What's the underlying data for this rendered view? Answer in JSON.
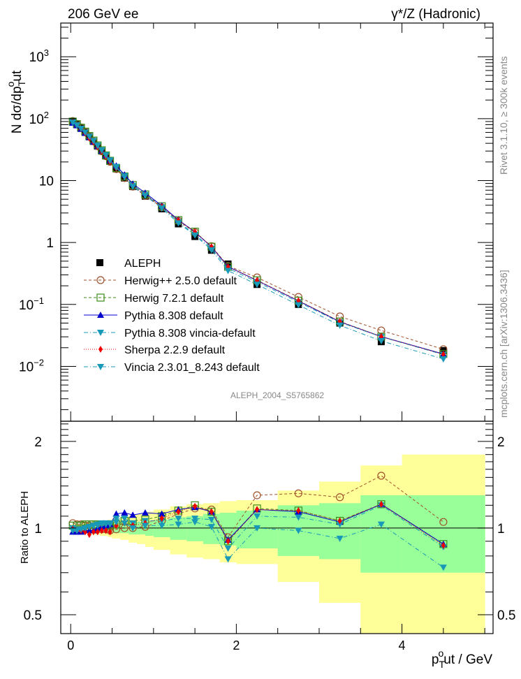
{
  "chart_data": {
    "type": "line",
    "header_left": "206 GeV ee",
    "header_right": "γ*/Z (Hadronic)",
    "side_text_top": "Rivet 3.1.10, ≥ 300k events",
    "side_text_bottom": "mcplots.cern.ch [arXiv:1306.3436]",
    "analysis_label": "ALEPH_2004_S5765862",
    "main": {
      "ylabel": "N dσ/dp",
      "ylabel_sub": "T",
      "ylabel_sup": "o",
      "ylabel_tail": "ut",
      "yscale": "log",
      "ylim": [
        0.0013,
        3500
      ],
      "yticks": [
        {
          "v": 1000,
          "base": "10",
          "exp": "3"
        },
        {
          "v": 100,
          "base": "10",
          "exp": "2"
        },
        {
          "v": 10,
          "base": "10",
          "exp": ""
        },
        {
          "v": 1,
          "base": "1",
          "exp": ""
        },
        {
          "v": 0.1,
          "base": "10",
          "exp": "−1"
        },
        {
          "v": 0.01,
          "base": "10",
          "exp": "−2"
        }
      ]
    },
    "ratio": {
      "ylabel": "Ratio to ALEPH",
      "yscale": "log",
      "ylim": [
        0.43,
        2.35
      ],
      "yticks": [
        {
          "v": 2,
          "label": "2"
        },
        {
          "v": 1,
          "label": "1"
        },
        {
          "v": 0.5,
          "label": "0.5"
        }
      ],
      "band_edges": [
        0,
        0.05,
        0.1,
        0.15,
        0.2,
        0.25,
        0.3,
        0.35,
        0.4,
        0.45,
        0.5,
        0.6,
        0.7,
        0.8,
        0.9,
        1.0,
        1.2,
        1.4,
        1.6,
        1.8,
        2.0,
        2.5,
        3.0,
        3.5,
        4.0,
        5.0
      ],
      "band_stat": [
        0.02,
        0.02,
        0.02,
        0.02,
        0.02,
        0.03,
        0.03,
        0.03,
        0.03,
        0.03,
        0.04,
        0.04,
        0.05,
        0.05,
        0.06,
        0.07,
        0.09,
        0.1,
        0.12,
        0.13,
        0.15,
        0.2,
        0.22,
        0.3,
        0.3,
        0.3
      ],
      "band_total": [
        0.03,
        0.03,
        0.03,
        0.04,
        0.04,
        0.05,
        0.05,
        0.06,
        0.06,
        0.07,
        0.08,
        0.09,
        0.11,
        0.12,
        0.14,
        0.16,
        0.19,
        0.21,
        0.22,
        0.24,
        0.25,
        0.35,
        0.45,
        0.65,
        0.8,
        0.75
      ]
    },
    "xlabel": "p",
    "xlabel_sub": "T",
    "xlabel_sup": "o",
    "xlabel_tail": "ut / GeV",
    "xlim": [
      -0.12,
      5.1
    ],
    "xticks": [
      0,
      2,
      4
    ],
    "x": [
      0.025,
      0.075,
      0.125,
      0.175,
      0.225,
      0.275,
      0.325,
      0.375,
      0.425,
      0.475,
      0.55,
      0.65,
      0.75,
      0.9,
      1.1,
      1.3,
      1.5,
      1.7,
      1.9,
      2.25,
      2.75,
      3.25,
      3.75,
      4.5
    ],
    "data": {
      "name": "ALEPH",
      "values": [
        88,
        80,
        70,
        60,
        51,
        43,
        36,
        30,
        25,
        20.5,
        15.5,
        11,
        8.0,
        5.6,
        3.5,
        2.0,
        1.25,
        0.75,
        0.45,
        0.21,
        0.1,
        0.05,
        0.025,
        0.018
      ]
    },
    "legend": {
      "placement": "center-left"
    },
    "series": [
      {
        "name": "Herwig++ 2.5.0 default",
        "color": "#a0522d",
        "dash": "4,3",
        "marker": "circle-open",
        "ratios": [
          1.04,
          1.03,
          1.03,
          1.02,
          1.02,
          1.0,
          1.0,
          0.99,
          0.99,
          0.98,
          0.99,
          1.0,
          1.0,
          1.01,
          1.06,
          1.12,
          1.17,
          1.16,
          0.93,
          1.3,
          1.32,
          1.28,
          1.52,
          1.05
        ]
      },
      {
        "name": "Herwig 7.2.1 default",
        "color": "#3a8c1a",
        "dash": "4,3",
        "marker": "square-open",
        "ratios": [
          1.02,
          1.02,
          1.02,
          1.03,
          1.03,
          1.03,
          1.03,
          1.03,
          1.02,
          1.02,
          1.03,
          1.06,
          1.06,
          1.07,
          1.1,
          1.15,
          1.2,
          1.14,
          0.9,
          1.17,
          1.15,
          1.06,
          1.21,
          0.88
        ]
      },
      {
        "name": "Pythia 8.308 default",
        "color": "#0000cc",
        "dash": "",
        "marker": "triangle-up",
        "ratios": [
          0.97,
          0.97,
          0.97,
          0.98,
          0.98,
          0.98,
          1.0,
          1.01,
          1.02,
          1.03,
          1.12,
          1.13,
          1.11,
          1.13,
          1.12,
          1.16,
          1.18,
          1.14,
          0.91,
          1.16,
          1.14,
          1.05,
          1.21,
          0.88
        ]
      },
      {
        "name": "Pythia 8.308 vincia-default",
        "color": "#1899b8",
        "dash": "6,3,1,3",
        "marker": "triangle-down",
        "ratios": [
          1.0,
          0.99,
          0.99,
          1.0,
          1.01,
          1.02,
          1.03,
          1.04,
          1.04,
          1.04,
          1.08,
          1.08,
          1.04,
          1.06,
          1.06,
          1.08,
          1.08,
          1.07,
          0.85,
          1.1,
          1.09,
          1.03,
          1.2,
          0.86
        ]
      },
      {
        "name": "Sherpa 2.2.9 default",
        "color": "#ee0000",
        "dash": "1,2",
        "marker": "diamond",
        "ratios": [
          0.99,
          0.98,
          0.98,
          0.97,
          0.95,
          0.97,
          0.97,
          0.98,
          0.98,
          0.97,
          1.02,
          1.04,
          1.02,
          1.04,
          1.08,
          1.14,
          1.19,
          1.14,
          0.9,
          1.16,
          1.15,
          1.06,
          1.21,
          0.87
        ]
      },
      {
        "name": "Vincia 2.3.01_8.243 default",
        "color": "#1899b8",
        "dash": "6,3,1,3",
        "marker": "triangle-down",
        "ratios": [
          0.98,
          0.98,
          0.99,
          1.0,
          1.01,
          1.02,
          1.02,
          1.03,
          1.03,
          1.03,
          1.05,
          1.04,
          1.0,
          1.02,
          1.02,
          1.03,
          1.05,
          1.01,
          0.78,
          1.0,
          0.98,
          0.92,
          1.03,
          0.73
        ]
      }
    ]
  }
}
